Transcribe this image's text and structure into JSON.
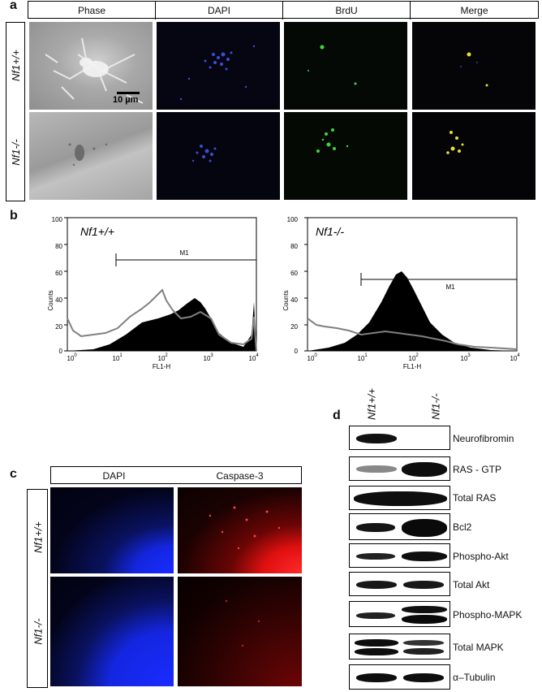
{
  "panel_a": {
    "label": "a",
    "columns": [
      "Phase",
      "DAPI",
      "BrdU",
      "Merge"
    ],
    "rows": [
      "Nf1+/+",
      "Nf1-/-"
    ],
    "scale_bar": "10 µm"
  },
  "panel_b": {
    "label": "b",
    "x_ticks_base": [
      "10",
      "10",
      "10",
      "10",
      "10"
    ],
    "x_ticks_exp": [
      "0",
      "1",
      "2",
      "3",
      "4"
    ],
    "y_ticks": [
      "100",
      "80",
      "60",
      "40",
      "20",
      "0"
    ],
    "xlabel": "FL1-H",
    "ylabel": "Counts",
    "marker": "M1",
    "plots": [
      {
        "title": "Nf1+/+"
      },
      {
        "title": "Nf1-/-"
      }
    ]
  },
  "panel_c": {
    "label": "c",
    "columns": [
      "DAPI",
      "Caspase-3"
    ],
    "rows": [
      "Nf1+/+",
      "Nf1-/-"
    ]
  },
  "panel_d": {
    "label": "d",
    "columns": [
      "Nf1+/+",
      "Nf1-/-"
    ],
    "blots": [
      "Neurofibromin",
      "RAS - GTP",
      "Total RAS",
      "Bcl2",
      "Phospho-Akt",
      "Total Akt",
      "Phospho-MAPK",
      "Total MAPK",
      "α–Tubulin"
    ]
  }
}
